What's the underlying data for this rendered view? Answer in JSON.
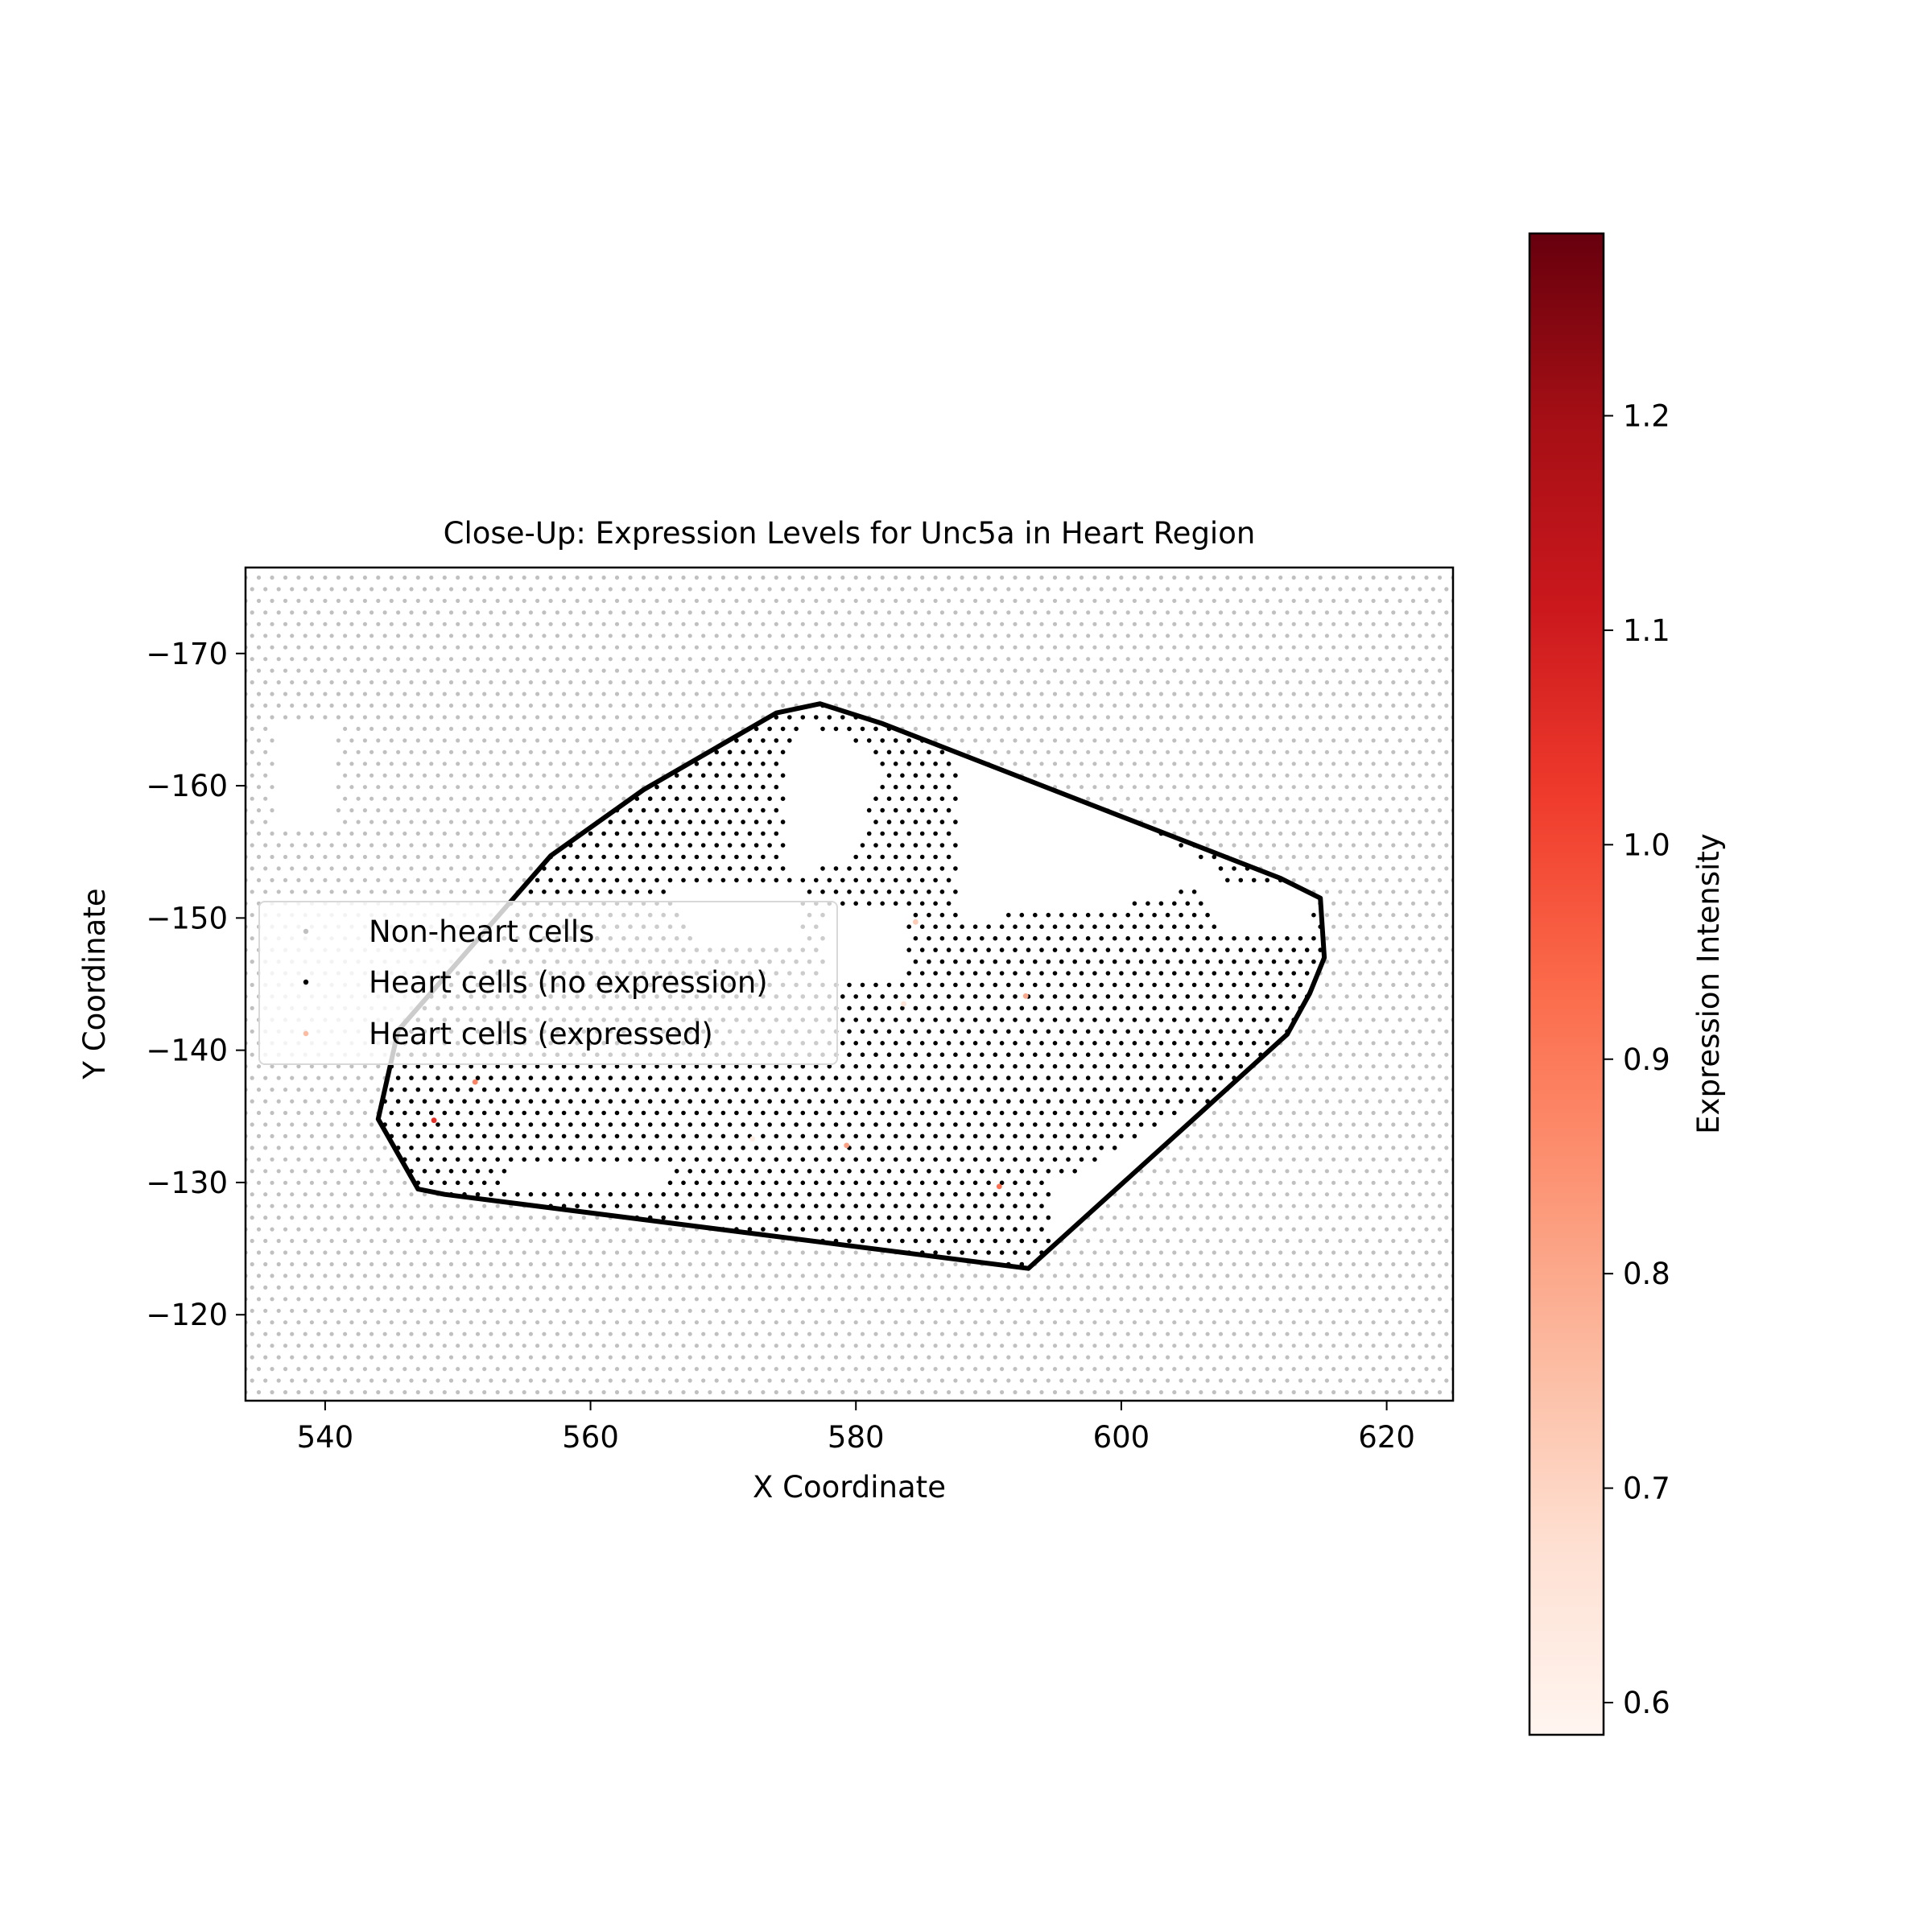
{
  "chart_data": {
    "type": "scatter",
    "title": "Close-Up: Expression Levels for Unc5a in Heart Region",
    "xlabel": "X Coordinate",
    "ylabel": "Y Coordinate",
    "xlim": [
      534,
      625
    ],
    "ylim": [
      -176.5,
      -113.5
    ],
    "y_inverted": true,
    "x_ticks": [
      540,
      560,
      580,
      600,
      620
    ],
    "x_tick_labels": [
      "540",
      "560",
      "580",
      "600",
      "620"
    ],
    "y_ticks": [
      -170,
      -160,
      -150,
      -140,
      -130,
      -120
    ],
    "y_tick_labels": [
      "−170",
      "−160",
      "−150",
      "−140",
      "−130",
      "−120"
    ],
    "grid": false,
    "legend_position": "center-left",
    "legend": [
      {
        "label": "Non-heart cells",
        "color": "#c0c0c0"
      },
      {
        "label": "Heart cells (no expression)",
        "color": "#000000"
      },
      {
        "label": "Heart cells (expressed)",
        "color": "#fcbba1"
      }
    ],
    "colorbar": {
      "label": "Expression Intensity",
      "colormap": "Reds",
      "range": [
        0.585,
        1.285
      ],
      "ticks": [
        0.6,
        0.7,
        0.8,
        0.9,
        1.0,
        1.1,
        1.2
      ],
      "tick_labels": [
        "0.6",
        "0.7",
        "0.8",
        "0.9",
        "1.0",
        "1.1",
        "1.2"
      ],
      "colors": [
        "#fff5f0",
        "#fee0d2",
        "#fcbba1",
        "#fc9272",
        "#fb6a4a",
        "#ef3b2c",
        "#cb181d",
        "#a50f15",
        "#67000d"
      ]
    },
    "boundary": [
      [
        544,
        -134.8
      ],
      [
        547,
        -129.5
      ],
      [
        549,
        -129.1
      ],
      [
        593,
        -123.5
      ],
      [
        606,
        -135.3
      ],
      [
        612.5,
        -141.2
      ],
      [
        614.2,
        -144.3
      ],
      [
        615.3,
        -147
      ],
      [
        615,
        -151.5
      ],
      [
        612,
        -153
      ],
      [
        582,
        -164.7
      ],
      [
        577.3,
        -166.2
      ],
      [
        574,
        -165.5
      ],
      [
        564,
        -159.7
      ],
      [
        557,
        -154.7
      ],
      [
        545.5,
        -141.5
      ]
    ],
    "expressed_cells": [
      {
        "x": 548.2,
        "y": -134.7,
        "value": 1.05
      },
      {
        "x": 551.3,
        "y": -137.6,
        "value": 0.88
      },
      {
        "x": 572.2,
        "y": -133.3,
        "value": 0.62
      },
      {
        "x": 579.3,
        "y": -132.8,
        "value": 0.82
      },
      {
        "x": 583.6,
        "y": -143.5,
        "value": 0.66
      },
      {
        "x": 584.5,
        "y": -149.7,
        "value": 0.72
      },
      {
        "x": 590.8,
        "y": -129.7,
        "value": 0.92
      },
      {
        "x": 592.8,
        "y": -144.1,
        "value": 0.8
      }
    ]
  }
}
